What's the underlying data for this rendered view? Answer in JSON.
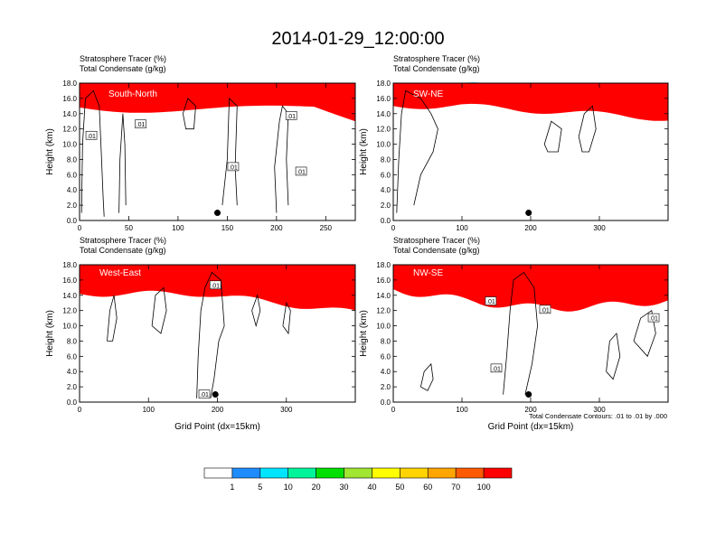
{
  "title": "2014-01-29_12:00:00",
  "contour_note": "Total Condensate Contours: .01 to .01 by .000",
  "chart_data": [
    {
      "type": "heatmap",
      "section": "South-North",
      "title_lines": [
        "Stratosphere Tracer   (%)",
        "Total Condensate   (g/kg)"
      ],
      "xlabel": "",
      "ylabel": "Height (km)",
      "xlim": [
        0,
        280
      ],
      "ylim": [
        0,
        18
      ],
      "x_ticks": [
        0,
        50,
        100,
        150,
        200,
        250
      ],
      "y_ticks": [
        "0.0",
        "2.0",
        "4.0",
        "6.0",
        "8.0",
        "10.0",
        "12.0",
        "14.0",
        "16.0",
        "18.0"
      ],
      "contour_labels": [
        {
          "text": ".01",
          "x": 12,
          "y": 11.1
        },
        {
          "text": ".01",
          "x": 62,
          "y": 12.6
        },
        {
          "text": ".01",
          "x": 156,
          "y": 7.0
        },
        {
          "text": ".01",
          "x": 215,
          "y": 13.7
        },
        {
          "text": ".01",
          "x": 225,
          "y": 6.4
        }
      ],
      "marker": {
        "x": 140,
        "y": 1.0
      }
    },
    {
      "type": "heatmap",
      "section": "SW-NE",
      "title_lines": [
        "Stratosphere Tracer   (%)",
        "Total Condensate   (g/kg)"
      ],
      "xlabel": "",
      "ylabel": "Height (km)",
      "xlim": [
        0,
        400
      ],
      "ylim": [
        0,
        18
      ],
      "x_ticks": [
        0,
        100,
        200,
        300
      ],
      "y_ticks": [
        "0.0",
        "2.0",
        "4.0",
        "6.0",
        "8.0",
        "10.0",
        "12.0",
        "14.0",
        "16.0",
        "18.0"
      ],
      "contour_labels": [],
      "marker": {
        "x": 197,
        "y": 1.0
      }
    },
    {
      "type": "heatmap",
      "section": "West-East",
      "title_lines": [
        "Stratosphere Tracer   (%)",
        "Total Condensate   (g/kg)"
      ],
      "xlabel": "Grid Point (dx=15km)",
      "ylabel": "Height (km)",
      "xlim": [
        0,
        400
      ],
      "ylim": [
        0,
        18
      ],
      "x_ticks": [
        0,
        100,
        200,
        300
      ],
      "y_ticks": [
        "0.0",
        "2.0",
        "4.0",
        "6.0",
        "8.0",
        "10.0",
        "12.0",
        "14.0",
        "16.0",
        "18.0"
      ],
      "contour_labels": [
        {
          "text": ".01",
          "x": 197,
          "y": 15.3
        },
        {
          "text": ".01",
          "x": 181,
          "y": 1.0
        }
      ],
      "marker": {
        "x": 197,
        "y": 1.0
      }
    },
    {
      "type": "heatmap",
      "section": "NW-SE",
      "title_lines": [
        "Stratosphere Tracer   (%)",
        "Total Condensate   (g/kg)"
      ],
      "xlabel": "Grid Point (dx=15km)",
      "ylabel": "Height (km)",
      "xlim": [
        0,
        400
      ],
      "ylim": [
        0,
        18
      ],
      "x_ticks": [
        0,
        100,
        200,
        300
      ],
      "y_ticks": [
        "0.0",
        "2.0",
        "4.0",
        "6.0",
        "8.0",
        "10.0",
        "12.0",
        "14.0",
        "16.0",
        "18.0"
      ],
      "contour_labels": [
        {
          "text": ".01",
          "x": 142,
          "y": 13.2
        },
        {
          "text": ".01",
          "x": 221,
          "y": 12.1
        },
        {
          "text": ".01",
          "x": 150,
          "y": 4.4
        },
        {
          "text": ".01",
          "x": 379,
          "y": 11.0
        }
      ],
      "marker": {
        "x": 197,
        "y": 1.0
      }
    }
  ],
  "colorbar": {
    "labels": [
      "1",
      "5",
      "10",
      "20",
      "30",
      "40",
      "50",
      "60",
      "70",
      "100"
    ],
    "colors": [
      "#ffffff",
      "#1e8cff",
      "#00e5ff",
      "#00f59a",
      "#00e000",
      "#a0e632",
      "#ffff00",
      "#ffd400",
      "#ffa500",
      "#ff5a00",
      "#ff0000"
    ]
  }
}
